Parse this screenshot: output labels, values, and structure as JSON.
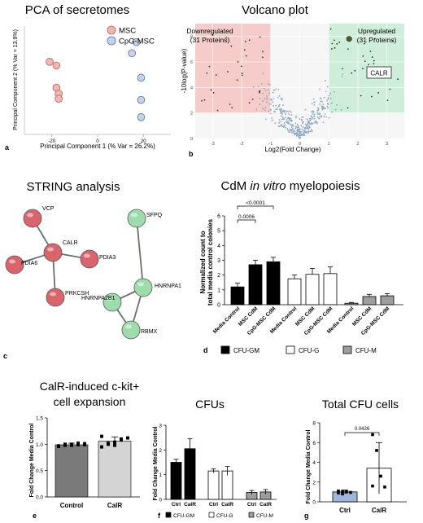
{
  "panels": {
    "a": {
      "letter": "a",
      "chart_data": {
        "type": "scatter",
        "title": "PCA of secretomes",
        "xlabel": "Principal Component 1 (% Var = 26.2%)",
        "ylabel": "Principal Component 2 (% Var = 13.9%)",
        "xticks": [
          "-20",
          "0",
          "20"
        ],
        "xlim": [
          -32,
          32
        ],
        "ylim": [
          -22,
          22
        ],
        "legend": "top-right",
        "series": [
          {
            "name": "MSC",
            "color": "#f0b8b2",
            "stroke": "#b06060",
            "points": [
              [
                -21,
                7.5
              ],
              [
                -18,
                6
              ],
              [
                -18,
                -3
              ],
              [
                -17,
                -5.5
              ],
              [
                -17,
                -7.5
              ]
            ]
          },
          {
            "name": "CpG-MSC",
            "color": "#c3d3ea",
            "stroke": "#5a6f99",
            "points": [
              [
                17,
                15.5
              ],
              [
                15,
                11
              ],
              [
                19,
                1
              ],
              [
                19,
                -8
              ],
              [
                19,
                -15
              ]
            ]
          }
        ]
      }
    },
    "b": {
      "letter": "b",
      "chart_data": {
        "type": "scatter",
        "title": "Volcano plot",
        "xlabel": "Log2(Fold Change)",
        "ylabel": "-10log(P-value)",
        "xticks": [
          "-3",
          "-2",
          "-1",
          "0",
          "1",
          "2",
          "3"
        ],
        "yticks": [
          "0",
          "2",
          "4",
          "6",
          "8"
        ],
        "xlim": [
          -3.6,
          3.6
        ],
        "ylim": [
          0,
          9
        ],
        "regions": [
          {
            "label": "Downregulated",
            "sublabel": "(31 Proteins)",
            "x": [
              -3.6,
              -1
            ],
            "y": [
              2,
              9
            ],
            "color": "#f4c4c2"
          },
          {
            "label": "Upregulated",
            "sublabel": "(31 Proteins)",
            "x": [
              1,
              3.6
            ],
            "y": [
              2,
              9
            ],
            "color": "#c8ecd4"
          }
        ],
        "highlight": {
          "label": "CALR",
          "x": 1.7,
          "y": 7.8
        }
      }
    },
    "c": {
      "letter": "c",
      "title": "STRING analysis",
      "nodes": [
        {
          "id": "VCP",
          "group": "red",
          "pos": [
            40,
            268
          ]
        },
        {
          "id": "CALR",
          "group": "red",
          "pos": [
            65,
            310
          ]
        },
        {
          "id": "PDIA3",
          "group": "red",
          "pos": [
            110,
            318
          ]
        },
        {
          "id": "PDIA6",
          "group": "red",
          "pos": [
            18,
            325
          ]
        },
        {
          "id": "PRKCSH",
          "group": "red",
          "pos": [
            68,
            365
          ]
        },
        {
          "id": "SFPQ",
          "group": "green",
          "pos": [
            168,
            268
          ]
        },
        {
          "id": "HNRNPA1",
          "group": "green",
          "pos": [
            176,
            353
          ]
        },
        {
          "id": "HNRNPA2B1",
          "group": "green",
          "pos": [
            138,
            371
          ]
        },
        {
          "id": "RBMX",
          "group": "green",
          "pos": [
            161,
            405
          ]
        }
      ],
      "edges": [
        [
          "VCP",
          "CALR"
        ],
        [
          "CALR",
          "PDIA3"
        ],
        [
          "CALR",
          "PDIA6"
        ],
        [
          "CALR",
          "PRKCSH"
        ],
        [
          "SFPQ",
          "HNRNPA1"
        ],
        [
          "HNRNPA1",
          "HNRNPA2B1"
        ],
        [
          "HNRNPA1",
          "RBMX"
        ],
        [
          "HNRNPA2B1",
          "RBMX"
        ]
      ],
      "colors": {
        "red": "#d9646b",
        "green": "#9fdcac"
      }
    },
    "d": {
      "letter": "d",
      "chart_data": {
        "type": "bar",
        "title_pre": "CdM ",
        "title_italic": "in vitro",
        "title_post": " myelopoiesis",
        "ylabel_line1": "Normalized count to",
        "ylabel_line2": "total media control colonies",
        "yticks": [
          "0",
          "1",
          "2",
          "3",
          "4",
          "5",
          "6"
        ],
        "ylim": [
          0,
          6
        ],
        "groups": [
          {
            "name": "CFU-GM",
            "color": "#000000",
            "categories": [
              "Media Control",
              "MSC CdM",
              "CpG-MSC CdM"
            ],
            "values": [
              1.2,
              2.7,
              2.9
            ],
            "errors": [
              0.25,
              0.3,
              0.3
            ]
          },
          {
            "name": "CFU-G",
            "color": "#ffffff",
            "categories": [
              "Media Control",
              "MSC CdM",
              "CpG-MSC CdM"
            ],
            "values": [
              1.75,
              2.05,
              2.1
            ],
            "errors": [
              0.25,
              0.4,
              0.45
            ]
          },
          {
            "name": "CFU-M",
            "color": "#9e9e9e",
            "categories": [
              "Media Control",
              "MSC CdM",
              "CpG-MSC CdM"
            ],
            "values": [
              0.1,
              0.55,
              0.6
            ],
            "errors": [
              0.05,
              0.15,
              0.15
            ]
          }
        ],
        "significance": [
          {
            "label": "<0.0001",
            "from": 0,
            "to": 2
          },
          {
            "label": "0.0006",
            "from": 0,
            "to": 1
          }
        ],
        "legend": "bottom"
      }
    },
    "e": {
      "letter": "e",
      "chart_data": {
        "type": "bar",
        "title_line1": "CalR-induced c-kit+",
        "title_line2": "cell expansion",
        "ylabel": "Fold Change Media Control",
        "yticks": [
          "0.0",
          "0.5",
          "1.0",
          "1.5"
        ],
        "ylim": [
          0,
          1.5
        ],
        "categories": [
          "Control",
          "CalR"
        ],
        "values": [
          0.99,
          1.06
        ],
        "errors": [
          0.03,
          0.08
        ],
        "colors": [
          "#7a7a7a",
          "#d4d4d4"
        ],
        "points": [
          [
            0.96,
            0.98,
            1.0,
            0.99,
            1.01,
            0.97,
            1.0,
            0.98,
            1.02,
            0.99
          ],
          [
            0.95,
            1.0,
            1.04,
            1.08,
            1.12,
            1.15,
            1.02,
            0.98,
            1.1
          ]
        ]
      }
    },
    "f": {
      "letter": "f",
      "chart_data": {
        "type": "bar",
        "title": "CFUs",
        "ylabel": "Fold Change Media Control",
        "yticks": [
          "0",
          "1",
          "2",
          "3"
        ],
        "ylim": [
          0,
          3
        ],
        "groups": [
          {
            "name": "CFU-GM",
            "color": "#000000",
            "categories": [
              "Ctrl",
              "CalR"
            ],
            "values": [
              1.5,
              2.05
            ],
            "errors": [
              0.12,
              0.4
            ]
          },
          {
            "name": "CFU-G",
            "color": "#ffffff",
            "categories": [
              "Ctrl",
              "CalR"
            ],
            "values": [
              1.15,
              1.15
            ],
            "errors": [
              0.08,
              0.18
            ]
          },
          {
            "name": "CFU-M",
            "color": "#9e9e9e",
            "categories": [
              "Ctrl",
              "CalR"
            ],
            "values": [
              0.28,
              0.3
            ],
            "errors": [
              0.08,
              0.1
            ]
          }
        ],
        "legend": "bottom"
      }
    },
    "g": {
      "letter": "g",
      "chart_data": {
        "type": "bar",
        "title": "Total CFU cells",
        "ylabel": "Fold Change Media Control",
        "yticks": [
          "0",
          "2",
          "4",
          "6",
          "8"
        ],
        "ylim": [
          0,
          8
        ],
        "categories": [
          "Ctrl",
          "CalR"
        ],
        "values": [
          1.0,
          3.4
        ],
        "errors": [
          0.2,
          2.6
        ],
        "colors": [
          "#9fb7dc",
          "#ffffff"
        ],
        "points": [
          [
            0.9,
            1.05,
            1.0,
            0.95,
            1.1,
            0.8
          ],
          [
            6.8,
            5.2,
            2.6,
            1.5,
            1.6
          ]
        ],
        "significance": {
          "label": "0.0426"
        }
      }
    }
  }
}
